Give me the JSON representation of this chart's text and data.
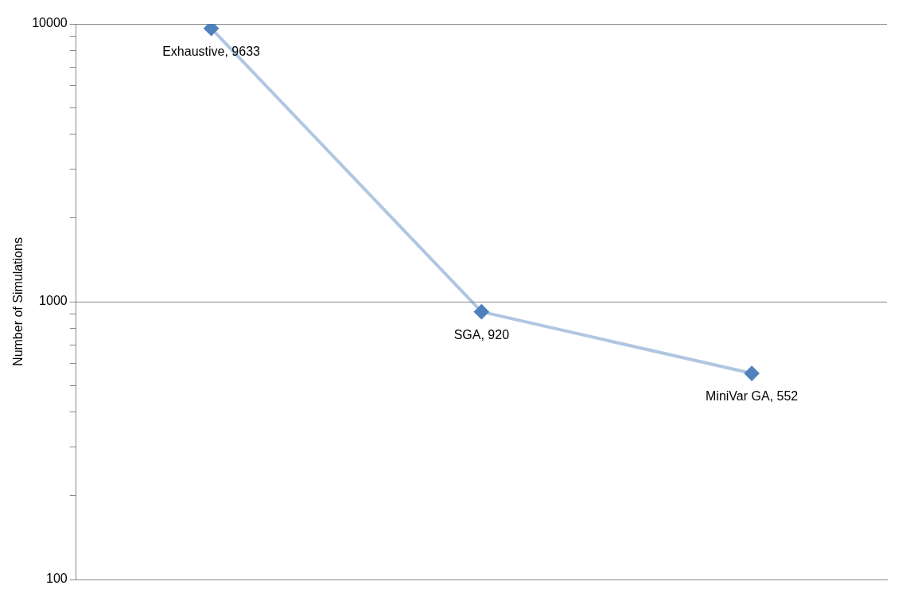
{
  "chart_data": {
    "type": "line",
    "ylabel": "Number of Simulations",
    "categories": [
      null,
      null,
      null
    ],
    "series": [
      {
        "color": "#4f81bd",
        "values": [
          9633,
          920,
          552
        ],
        "value_labels": [
          "Exhaustive, 9633",
          "SGA, 920",
          "MiniVar GA, 552"
        ]
      }
    ],
    "log": "y",
    "ylim": [
      100,
      10000
    ],
    "yticks": [
      100,
      {
        "value": 200,
        "label": null
      },
      {
        "value": 300,
        "label": null
      },
      {
        "value": 400,
        "label": null
      },
      {
        "value": 500,
        "label": null
      },
      {
        "value": 600,
        "label": null
      },
      {
        "value": 700,
        "label": null
      },
      {
        "value": 800,
        "label": null
      },
      {
        "value": 900,
        "label": null
      },
      1000,
      {
        "value": 2000,
        "label": null
      },
      {
        "value": 3000,
        "label": null
      },
      {
        "value": 4000,
        "label": null
      },
      {
        "value": 5000,
        "label": null
      },
      {
        "value": 6000,
        "label": null
      },
      {
        "value": 7000,
        "label": null
      },
      {
        "value": 8000,
        "label": null
      },
      {
        "value": 9000,
        "label": null
      },
      10000
    ],
    "grid": "y",
    "tick_labels": "y",
    "legend": false,
    "marker": "diamond",
    "line_style": "solid"
  }
}
